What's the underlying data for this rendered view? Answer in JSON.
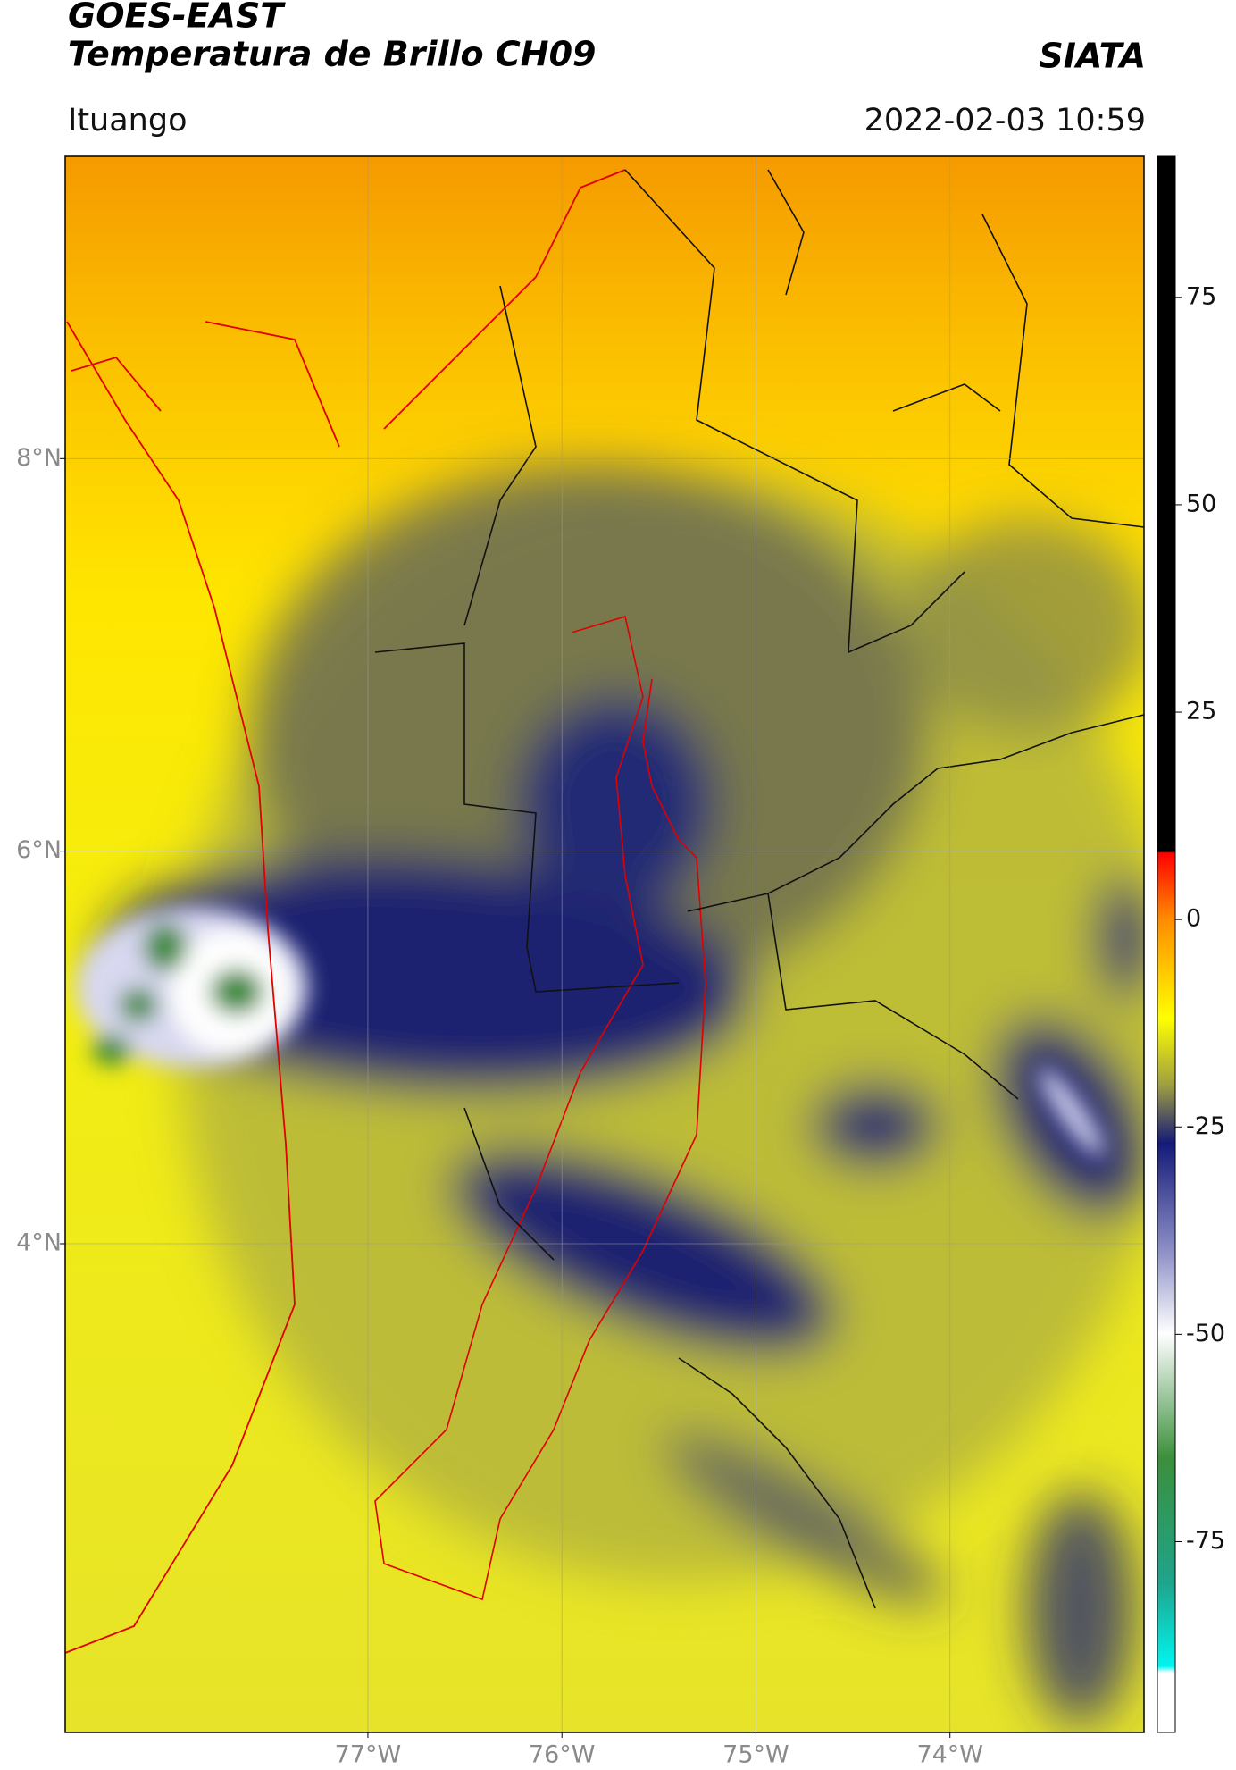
{
  "header": {
    "title": "GOES-EAST",
    "subtitle": "Temperatura de Brillo CH09",
    "source": "SIATA",
    "location": "Ituango",
    "timestamp": "2022-02-03 10:59"
  },
  "map": {
    "xlim": [
      -78.56,
      -73.0
    ],
    "ylim": [
      1.51,
      9.54
    ],
    "xticks": [
      {
        "value": -77,
        "label": "77°W"
      },
      {
        "value": -76,
        "label": "76°W"
      },
      {
        "value": -75,
        "label": "75°W"
      },
      {
        "value": -74,
        "label": "74°W"
      }
    ],
    "yticks": [
      {
        "value": 8,
        "label": "8°N"
      },
      {
        "value": 6,
        "label": "6°N"
      },
      {
        "value": 4,
        "label": "4°N"
      }
    ],
    "grid": true
  },
  "colorbar": {
    "lim": [
      -98,
      92
    ],
    "ticks": [
      75,
      50,
      25,
      0,
      -25,
      -50,
      -75
    ]
  }
}
